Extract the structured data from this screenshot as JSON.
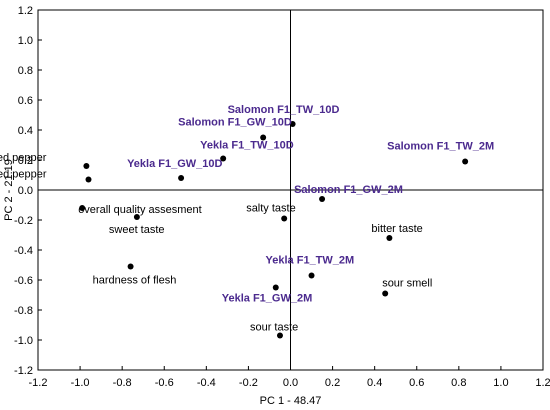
{
  "chart_data": {
    "type": "scatter",
    "title": "",
    "xlabel": "PC 1 - 48.47",
    "ylabel": "PC 2 - 21.19",
    "xlim": [
      -1.2,
      1.2
    ],
    "ylim": [
      -1.2,
      1.2
    ],
    "x_ticks": [
      "-1.2",
      "-1.0",
      "-0.8",
      "-0.6",
      "-0.4",
      "-0.2",
      "0.0",
      "0.2",
      "0.4",
      "0.6",
      "0.8",
      "1.0",
      "1.2"
    ],
    "y_ticks": [
      "1.2",
      "1.0",
      "0.8",
      "0.6",
      "0.4",
      "0.2",
      "0.0",
      "-0.2",
      "-0.4",
      "-0.6",
      "-0.8",
      "-1.0",
      "-1.2"
    ],
    "grid": false,
    "reference_lines": {
      "x": 0,
      "y": 0
    },
    "colors": {
      "variable": "#000000",
      "sample": "#4b2a8e"
    },
    "series": [
      {
        "name": "",
        "points": [
          {
            "label": "taste of fermented pepper",
            "x": -0.97,
            "y": 0.16
          },
          {
            "label": "smell of fermented pepper",
            "x": -0.96,
            "y": 0.07
          },
          {
            "label": "overall quality assesment",
            "x": -0.99,
            "y": -0.12
          },
          {
            "label": "sweet taste",
            "x": -0.73,
            "y": -0.18
          },
          {
            "label": "hardness of flesh",
            "x": -0.76,
            "y": -0.51
          },
          {
            "label": "salty taste",
            "x": -0.03,
            "y": -0.19
          },
          {
            "label": "bitter taste",
            "x": 0.47,
            "y": -0.32
          },
          {
            "label": "sour smell",
            "x": 0.45,
            "y": -0.69
          },
          {
            "label": "sour taste",
            "x": -0.05,
            "y": -0.97
          }
        ]
      },
      {
        "name": "",
        "points": [
          {
            "label": "Salomon F1_TW_10D",
            "x": 0.01,
            "y": 0.44
          },
          {
            "label": "Salomon F1_GW_10D",
            "x": -0.13,
            "y": 0.35
          },
          {
            "label": "Yekla F1_TW_10D",
            "x": -0.32,
            "y": 0.21
          },
          {
            "label": "Yekla F1_GW_10D",
            "x": -0.52,
            "y": 0.08
          },
          {
            "label": "Salomon F1_TW_2M",
            "x": 0.83,
            "y": 0.19
          },
          {
            "label": "Salomon F1_GW_2M",
            "x": 0.15,
            "y": -0.06
          },
          {
            "label": "Yekla F1_TW_2M",
            "x": 0.1,
            "y": -0.57
          },
          {
            "label": "Yekla F1_GW_2M",
            "x": -0.07,
            "y": -0.65
          }
        ]
      }
    ]
  }
}
